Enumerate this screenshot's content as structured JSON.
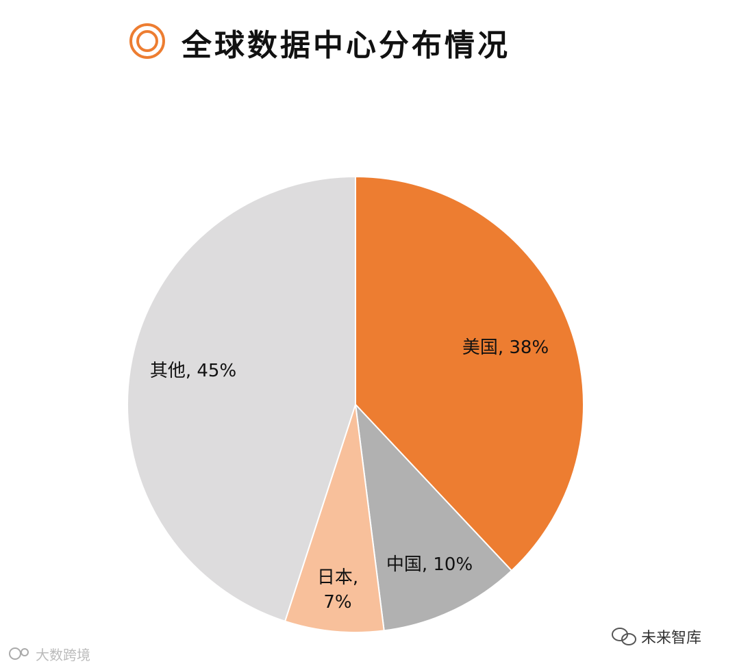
{
  "chart_data": {
    "type": "pie",
    "title": "全球数据中心分布情况",
    "values": [
      38,
      10,
      7,
      45
    ],
    "value_labels": [
      "美国, 38%",
      "中国, 10%",
      "日本, 7%",
      "其他, 45%"
    ],
    "colors": [
      "#ed7d31",
      "#b1b1b1",
      "#f8c09b",
      "#dddcdd"
    ]
  },
  "watermarks": [
    "大数跨境",
    "未来智库"
  ]
}
